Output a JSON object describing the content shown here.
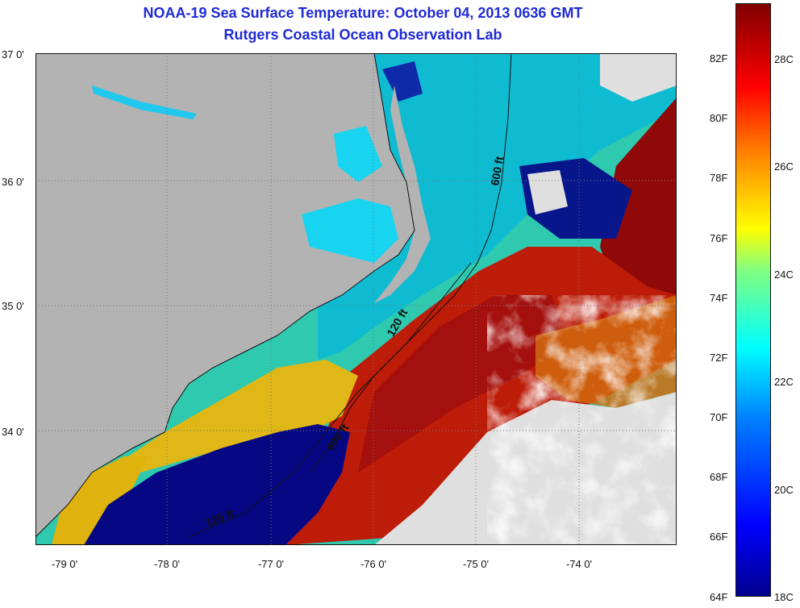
{
  "header": {
    "title": "NOAA-19 Sea Surface Temperature:  October 04, 2013 0636 GMT",
    "subtitle": "Rutgers Coastal Ocean Observation Lab"
  },
  "map": {
    "lat_labels": [
      "37 0'",
      "36 0'",
      "35 0'",
      "34 0'"
    ],
    "lon_labels": [
      "-79 0'",
      "-78 0'",
      "-77 0'",
      "-76 0'",
      "-75 0'",
      "-74 0'"
    ],
    "contours": [
      {
        "label": "600 ft"
      },
      {
        "label": "120 ft"
      },
      {
        "label": "600 ft"
      },
      {
        "label": "120 ft"
      }
    ],
    "colors": {
      "land": "#b3b3b3",
      "cloud": "#ffffff",
      "cold": "#00008f",
      "cool": "#00e0ff",
      "mid": "#30ffcf",
      "warm": "#ffe000",
      "hot": "#ff3000",
      "hottest": "#8f0000"
    }
  },
  "colorbar": {
    "fahrenheit_labels": [
      "82F",
      "80F",
      "78F",
      "76F",
      "74F",
      "72F",
      "70F",
      "68F",
      "66F",
      "64F"
    ],
    "celsius_labels": [
      "28C",
      "26C",
      "24C",
      "22C",
      "20C",
      "18C"
    ],
    "range_f": [
      64,
      84
    ],
    "range_c": [
      18,
      29
    ]
  }
}
